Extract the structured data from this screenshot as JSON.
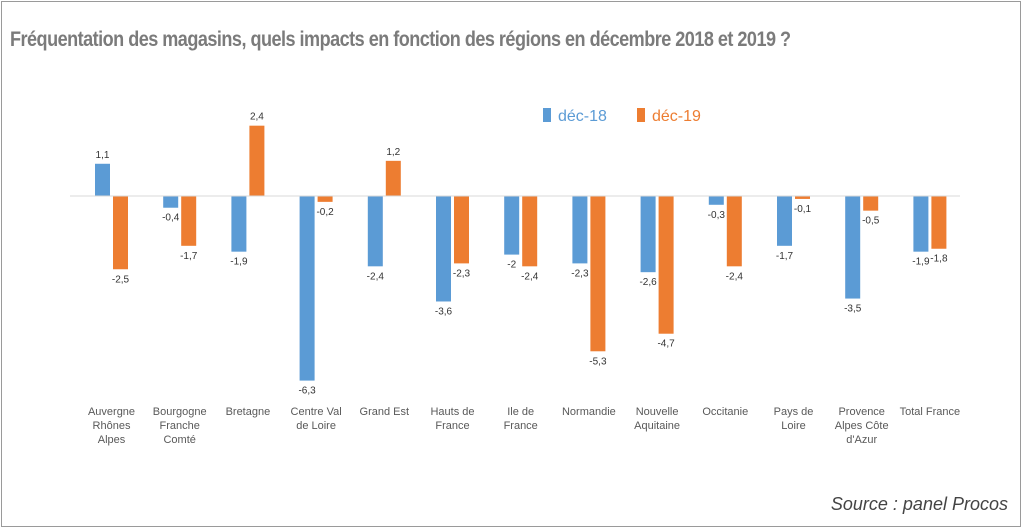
{
  "title": "Fréquentation des magasins, quels impacts en fonction des régions en décembre 2018 et 2019 ?",
  "source": "Source : panel Procos",
  "colors": {
    "s1": "#5b9bd5",
    "s2": "#ed7d31",
    "axis": "#d9d9d9"
  },
  "chart_data": {
    "type": "bar",
    "categories": [
      [
        "Auvergne",
        "Rhônes",
        "Alpes"
      ],
      [
        "Bourgogne",
        "Franche",
        "Comté"
      ],
      [
        "Bretagne"
      ],
      [
        "Centre Val",
        "de Loire"
      ],
      [
        "Grand Est"
      ],
      [
        "Hauts de",
        "France"
      ],
      [
        "Ile de",
        "France"
      ],
      [
        "Normandie"
      ],
      [
        "Nouvelle",
        "Aquitaine"
      ],
      [
        "Occitanie"
      ],
      [
        "Pays de",
        "Loire"
      ],
      [
        "Provence",
        "Alpes Côte",
        "d'Azur"
      ],
      [
        "Total France"
      ]
    ],
    "series": [
      {
        "name": "déc-18",
        "values": [
          1.1,
          -0.4,
          -1.9,
          -6.3,
          -2.4,
          -3.6,
          -2,
          -2.3,
          -2.6,
          -0.3,
          -1.7,
          -3.5,
          -1.9
        ],
        "labels": [
          "1,1",
          "-0,4",
          "-1,9",
          "-6,3",
          "-2,4",
          "-3,6",
          "-2",
          "-2,3",
          "-2,6",
          "-0,3",
          "-1,7",
          "-3,5",
          "-1,9"
        ]
      },
      {
        "name": "déc-19",
        "values": [
          -2.5,
          -1.7,
          2.4,
          -0.2,
          1.2,
          -2.3,
          -2.4,
          -5.3,
          -4.7,
          -2.4,
          -0.1,
          -0.5,
          -1.8
        ],
        "labels": [
          "-2,5",
          "-1,7",
          "2,4",
          "-0,2",
          "1,2",
          "-2,3",
          "-2,4",
          "-5,3",
          "-4,7",
          "-2,4",
          "-0,1",
          "-0,5",
          "-1,8"
        ]
      }
    ],
    "legend": "top-center",
    "grid": false
  }
}
